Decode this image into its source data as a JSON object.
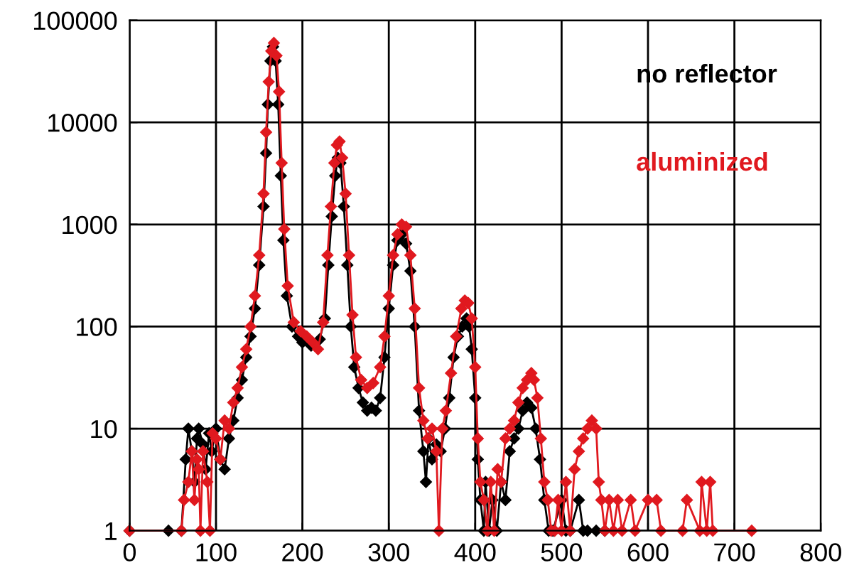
{
  "chart_data": {
    "type": "line",
    "log": "y",
    "xlim": [
      0,
      800
    ],
    "ylim": [
      1,
      100000
    ],
    "xticks": [
      0,
      100,
      200,
      300,
      400,
      500,
      600,
      700,
      800
    ],
    "yticks": [
      1,
      10,
      100,
      1000,
      10000,
      100000
    ],
    "grid": true,
    "legend": "top right",
    "marker": "diamond",
    "line_style": "solid",
    "series": [
      {
        "name": "no reflector",
        "color": "#000000",
        "x": [
          0,
          45,
          60,
          65,
          68,
          72,
          75,
          78,
          80,
          85,
          88,
          92,
          95,
          100,
          105,
          110,
          115,
          120,
          125,
          130,
          135,
          140,
          145,
          150,
          155,
          158,
          160,
          163,
          166,
          169,
          172,
          175,
          178,
          182,
          188,
          195,
          200,
          210,
          220,
          226,
          230,
          234,
          238,
          241,
          244,
          248,
          252,
          256,
          260,
          265,
          270,
          275,
          280,
          285,
          290,
          295,
          300,
          305,
          310,
          315,
          320,
          325,
          330,
          335,
          340,
          343,
          346,
          350,
          355,
          360,
          365,
          370,
          375,
          380,
          385,
          390,
          393,
          396,
          400,
          403,
          406,
          410,
          412,
          416,
          420,
          425,
          430,
          435,
          440,
          445,
          450,
          455,
          460,
          465,
          470,
          475,
          480,
          485,
          490,
          500,
          505,
          510,
          520,
          525,
          530,
          540,
          550
        ],
        "values": [
          1,
          1,
          1,
          5,
          10,
          6,
          3,
          8,
          10,
          7,
          4,
          9,
          6,
          10,
          5,
          4,
          8,
          12,
          20,
          30,
          50,
          80,
          150,
          400,
          1500,
          5000,
          15000,
          40000,
          55000,
          40000,
          15000,
          3000,
          700,
          200,
          100,
          80,
          70,
          65,
          75,
          120,
          400,
          1200,
          3000,
          4500,
          4000,
          1500,
          400,
          100,
          40,
          25,
          18,
          15,
          16,
          15,
          20,
          50,
          150,
          400,
          700,
          800,
          650,
          350,
          100,
          15,
          6,
          3,
          8,
          5,
          7,
          6,
          10,
          20,
          50,
          80,
          100,
          120,
          100,
          60,
          20,
          5,
          2,
          1,
          3,
          1,
          2,
          1,
          3,
          2,
          6,
          8,
          10,
          15,
          18,
          16,
          10,
          5,
          2,
          1,
          1,
          2,
          1,
          1,
          2,
          1,
          1,
          1,
          1
        ]
      },
      {
        "name": "aluminized",
        "color": "#e0191f",
        "x": [
          0,
          60,
          63,
          68,
          72,
          75,
          78,
          80,
          82,
          85,
          90,
          93,
          96,
          100,
          105,
          110,
          115,
          120,
          125,
          130,
          135,
          140,
          145,
          150,
          155,
          158,
          161,
          164,
          167,
          170,
          173,
          176,
          179,
          183,
          190,
          198,
          205,
          212,
          218,
          224,
          229,
          233,
          237,
          240,
          243,
          246,
          250,
          254,
          258,
          262,
          268,
          275,
          282,
          290,
          295,
          300,
          305,
          310,
          315,
          320,
          325,
          330,
          335,
          340,
          345,
          350,
          355,
          358,
          362,
          366,
          372,
          378,
          384,
          388,
          392,
          396,
          400,
          403,
          406,
          410,
          414,
          418,
          422,
          426,
          430,
          435,
          440,
          445,
          450,
          455,
          460,
          465,
          468,
          472,
          476,
          480,
          484,
          488,
          492,
          496,
          500,
          505,
          510,
          515,
          520,
          525,
          530,
          535,
          540,
          543,
          546,
          550,
          555,
          560,
          565,
          570,
          580,
          585,
          600,
          610,
          615,
          640,
          645,
          660,
          662,
          668,
          672,
          675,
          720
        ],
        "values": [
          1,
          1,
          2,
          3,
          6,
          2,
          5,
          4,
          1,
          6,
          3,
          1,
          9,
          8,
          5,
          12,
          10,
          18,
          25,
          40,
          60,
          100,
          200,
          500,
          2000,
          8000,
          25000,
          50000,
          60000,
          45000,
          20000,
          4000,
          900,
          250,
          110,
          90,
          80,
          70,
          60,
          110,
          500,
          1500,
          4000,
          6000,
          6500,
          4500,
          2000,
          500,
          130,
          50,
          30,
          25,
          28,
          40,
          80,
          200,
          500,
          800,
          1000,
          950,
          500,
          150,
          25,
          12,
          8,
          10,
          6,
          1,
          10,
          15,
          35,
          80,
          150,
          180,
          170,
          120,
          40,
          8,
          3,
          2,
          1,
          3,
          1,
          4,
          3,
          8,
          10,
          12,
          18,
          25,
          30,
          35,
          30,
          20,
          8,
          3,
          2,
          1,
          1,
          2,
          1,
          3,
          1,
          4,
          6,
          8,
          10,
          12,
          10,
          3,
          2,
          1,
          2,
          1,
          2,
          1,
          2,
          1,
          2,
          2,
          1,
          1,
          2,
          1,
          3,
          1,
          3,
          1,
          1
        ]
      }
    ]
  }
}
